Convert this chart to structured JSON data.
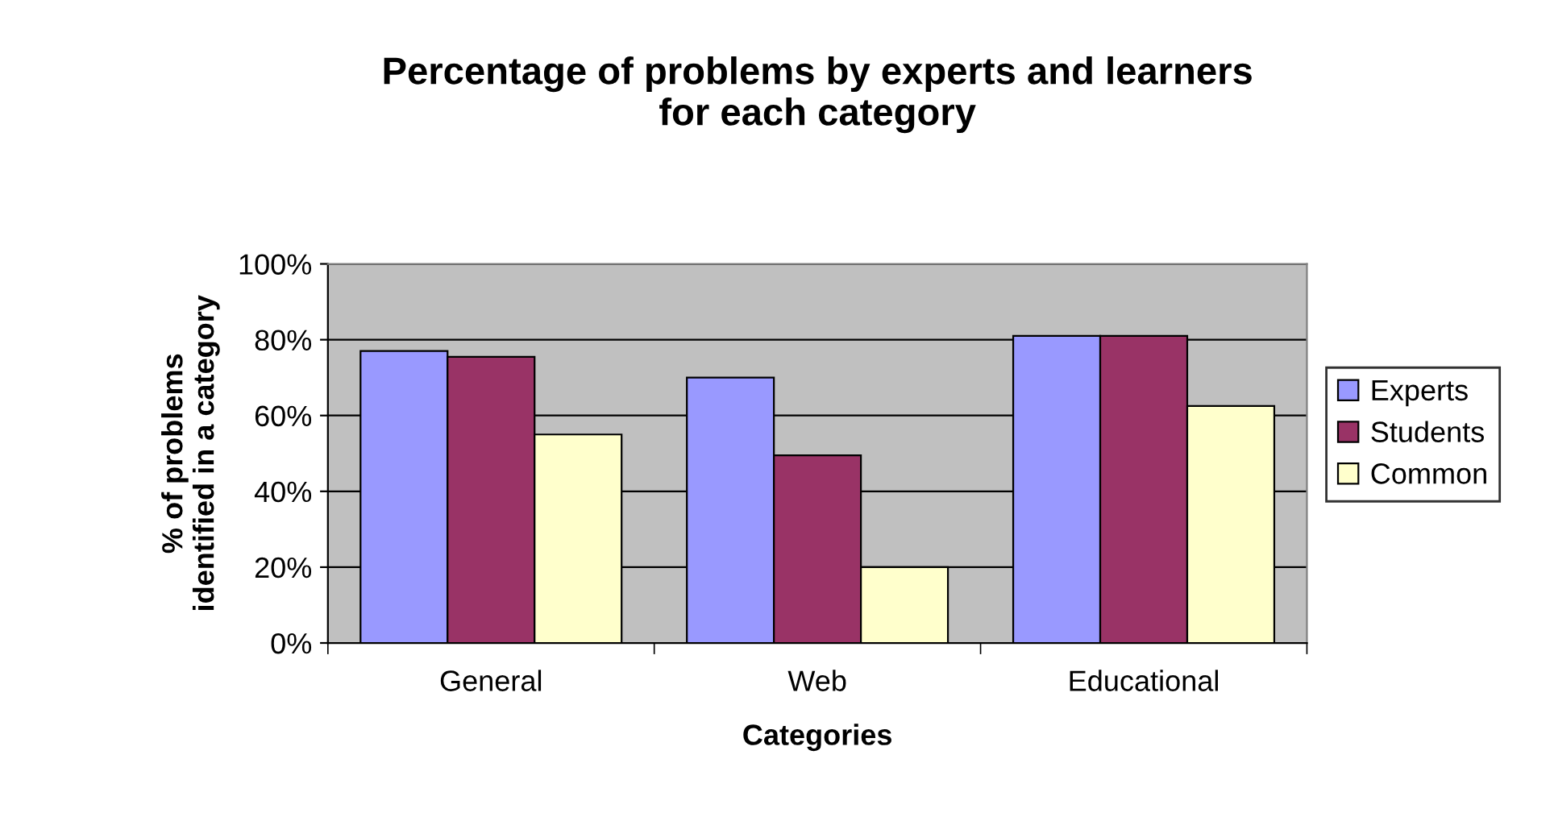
{
  "chart_data": {
    "type": "bar",
    "title": "Percentage of problems by experts and learners\nfor each category",
    "xlabel": "Categories",
    "ylabel": "% of problems\nidentified in a category",
    "categories": [
      "General",
      "Web",
      "Educational"
    ],
    "series": [
      {
        "name": "Experts",
        "color": "#9999ff",
        "values": [
          77,
          70,
          81
        ]
      },
      {
        "name": "Students",
        "color": "#993366",
        "values": [
          75.5,
          49.5,
          81
        ]
      },
      {
        "name": "Common",
        "color": "#ffffcc",
        "values": [
          55,
          20,
          62.5
        ]
      }
    ],
    "ylim": [
      0,
      100
    ],
    "yticks": [
      {
        "value": 0,
        "label": "0%"
      },
      {
        "value": 20,
        "label": "20%"
      },
      {
        "value": 40,
        "label": "40%"
      },
      {
        "value": 60,
        "label": "60%"
      },
      {
        "value": 80,
        "label": "80%"
      },
      {
        "value": 100,
        "label": "100%"
      }
    ],
    "grid": "y",
    "legend": "right"
  }
}
